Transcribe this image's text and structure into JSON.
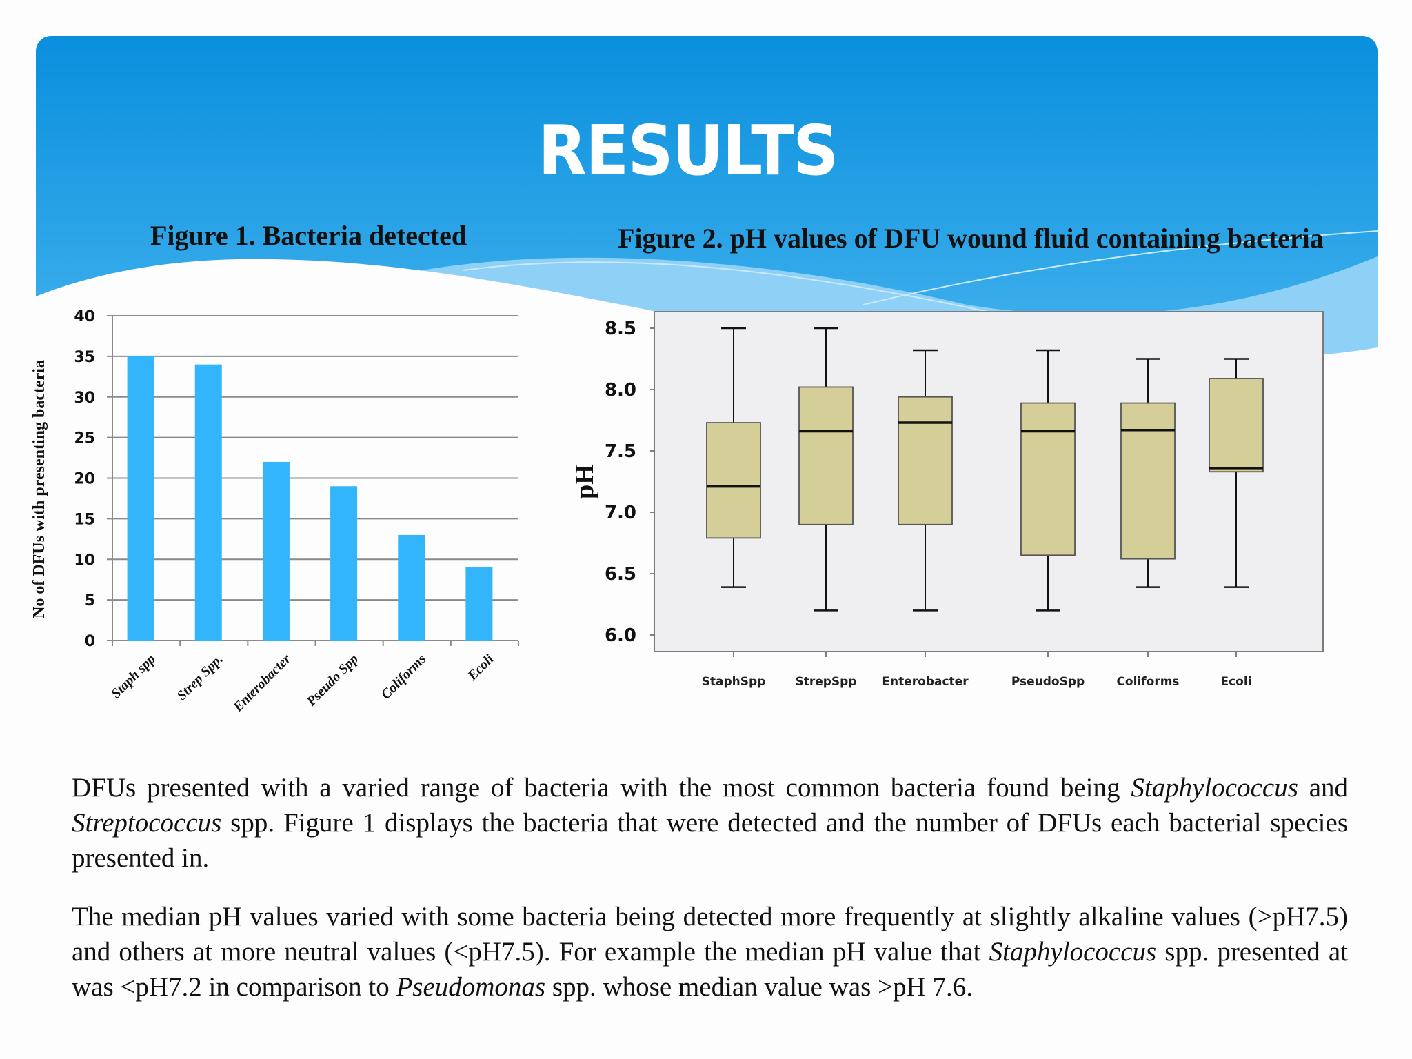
{
  "slide": {
    "title": "RESULTS",
    "colors": {
      "header_top": "#0a8fdd",
      "header_bottom": "#5bbdf3",
      "bar": "#33b5fb",
      "box_fill": "#d4cf98",
      "plot_bg": "#efeff1"
    }
  },
  "figure1": {
    "title": "Figure 1. Bacteria detected",
    "ylabel": "No of DFUs with presenting bacteria"
  },
  "figure2": {
    "title": "Figure 2. pH values of DFU wound fluid containing bacteria",
    "ylabel": "pH"
  },
  "paragraphs": [
    {
      "segments": [
        {
          "text": "DFUs presented with a varied range of bacteria with the most common bacteria found being ",
          "italic": false
        },
        {
          "text": "Staphylococcus",
          "italic": true
        },
        {
          "text": " and ",
          "italic": false
        },
        {
          "text": "Streptococcus",
          "italic": true
        },
        {
          "text": " spp.  Figure 1 displays the bacteria that were detected and the number of DFUs each bacterial species presented in.",
          "italic": false
        }
      ]
    },
    {
      "segments": [
        {
          "text": "The median pH values varied with some bacteria being detected more frequently at slightly alkaline values (>pH7.5) and others  at more neutral values (<pH7.5).  For example the median pH value that ",
          "italic": false
        },
        {
          "text": "Staphylococcus",
          "italic": true
        },
        {
          "text": " spp. presented at was <pH7.2 in comparison to ",
          "italic": false
        },
        {
          "text": "Pseudomonas",
          "italic": true
        },
        {
          "text": " spp. whose median value was >pH 7.6.",
          "italic": false
        }
      ]
    }
  ],
  "chart_data": [
    {
      "type": "bar",
      "title": "Figure 1. Bacteria detected",
      "xlabel": "",
      "ylabel": "No of DFUs with presenting bacteria",
      "categories": [
        "Staph spp",
        "Strep Spp.",
        "Enterobacter",
        "Pseudo Spp",
        "Coliforms",
        "Ecoli"
      ],
      "values": [
        35,
        34,
        22,
        19,
        13,
        9
      ],
      "ylim": [
        0,
        40
      ],
      "yticks": [
        0,
        5,
        10,
        15,
        20,
        25,
        30,
        35,
        40
      ],
      "grid": true,
      "legend": null,
      "color": "#33b5fb"
    },
    {
      "type": "boxplot",
      "title": "Figure 2. pH values of DFU wound fluid containing bacteria",
      "xlabel": "",
      "ylabel": "pH",
      "categories": [
        "StaphSpp",
        "StrepSpp",
        "Enterobacter",
        "PseudoSpp",
        "Coliforms",
        "Ecoli"
      ],
      "series": [
        {
          "name": "StaphSpp",
          "min": 6.39,
          "q1": 6.79,
          "median": 7.21,
          "q3": 7.73,
          "max": 8.5
        },
        {
          "name": "StrepSpp",
          "min": 6.2,
          "q1": 6.9,
          "median": 7.66,
          "q3": 8.02,
          "max": 8.5
        },
        {
          "name": "Enterobacter",
          "min": 6.2,
          "q1": 6.9,
          "median": 7.73,
          "q3": 7.94,
          "max": 8.32
        },
        {
          "name": "PseudoSpp",
          "min": 6.2,
          "q1": 6.65,
          "median": 7.66,
          "q3": 7.89,
          "max": 8.32
        },
        {
          "name": "Coliforms",
          "min": 6.39,
          "q1": 6.62,
          "median": 7.67,
          "q3": 7.89,
          "max": 8.25
        },
        {
          "name": "Ecoli",
          "min": 6.39,
          "q1": 7.33,
          "median": 7.36,
          "q3": 8.09,
          "max": 8.25
        }
      ],
      "ylim": [
        6.0,
        8.5
      ],
      "yticks": [
        "6.0",
        "6.5",
        "7.0",
        "7.5",
        "8.0",
        "8.5"
      ],
      "grid": false,
      "legend": null,
      "box_color": "#d4cf98"
    }
  ]
}
